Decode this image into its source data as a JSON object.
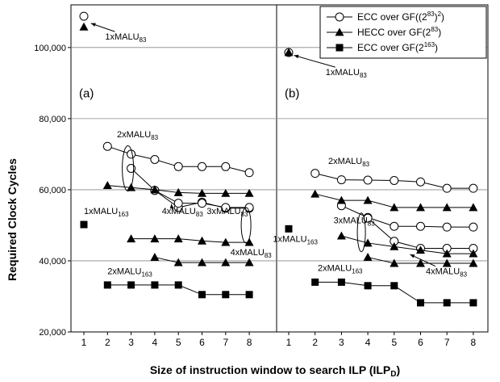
{
  "chart_data": {
    "type": "line",
    "title": "",
    "xlabel": "Size of instruction window to search ILP (ILP",
    "xlabel_sub": "D",
    "xlabel_close": ")",
    "ylabel": "Required Clock Cycles",
    "ylim": [
      20000,
      112000
    ],
    "y_ticks": [
      "20,000",
      "40,000",
      "60,000",
      "80,000",
      "100,000"
    ],
    "x_ticks": [
      "1",
      "2",
      "3",
      "4",
      "5",
      "6",
      "7",
      "8"
    ],
    "grid": true,
    "legend_position": "top-right",
    "legend": [
      {
        "label": "ECC over GF((2",
        "sup": "83",
        "label2": ")",
        "sup2": "2",
        "label3": ")",
        "marker": "circle"
      },
      {
        "label": "HECC over GF(2",
        "sup": "83",
        "label2": ")",
        "sup2": "",
        "label3": "",
        "marker": "triangle"
      },
      {
        "label": "ECC over GF(2",
        "sup": "163",
        "label2": ")",
        "sup2": "",
        "label3": "",
        "marker": "square"
      }
    ],
    "panels": [
      {
        "id": "a",
        "label": "(a)",
        "lines": [
          {
            "marker": "circle",
            "x": [
              1
            ],
            "y": [
              108800
            ]
          },
          {
            "marker": "triangle",
            "x": [
              1
            ],
            "y": [
              105800
            ]
          },
          {
            "marker": "square",
            "x": [
              1
            ],
            "y": [
              50200
            ]
          },
          {
            "marker": "circle",
            "x": [
              2,
              3,
              4,
              5,
              6,
              7,
              8
            ],
            "y": [
              72200,
              70000,
              68500,
              66500,
              66500,
              66500,
              64800
            ]
          },
          {
            "marker": "circle",
            "x": [
              3,
              4,
              5,
              6,
              7,
              8
            ],
            "y": [
              66000,
              59800,
              55000,
              56500,
              54800,
              54800
            ]
          },
          {
            "marker": "circle",
            "x": [
              4,
              5,
              6,
              7,
              8
            ],
            "y": [
              59800,
              56200,
              56200,
              55000,
              55000
            ]
          },
          {
            "marker": "triangle",
            "x": [
              2,
              3,
              4,
              5,
              6,
              7,
              8
            ],
            "y": [
              61200,
              60600,
              60000,
              59200,
              59000,
              59000,
              59000
            ]
          },
          {
            "marker": "triangle",
            "x": [
              3,
              4,
              5,
              6,
              7,
              8
            ],
            "y": [
              46200,
              46200,
              46200,
              45600,
              45200,
              45200
            ]
          },
          {
            "marker": "triangle",
            "x": [
              4,
              5,
              6,
              7,
              8
            ],
            "y": [
              41000,
              39500,
              39500,
              39500,
              39500
            ]
          },
          {
            "marker": "square",
            "x": [
              2,
              3,
              4,
              5,
              6,
              7,
              8
            ],
            "y": [
              33200,
              33200,
              33200,
              33200,
              30500,
              30500,
              30500
            ]
          }
        ],
        "annotations": [
          {
            "text": "1xMALU",
            "sub": "83",
            "tx": 1.9,
            "ty": 102200,
            "ax": 1.3,
            "ay": 106800
          },
          {
            "text": "2xMALU",
            "sub": "83",
            "tx": 2.4,
            "ty": 74800,
            "ax": null,
            "ay": null
          },
          {
            "text": "1xMALU",
            "sub": "163",
            "tx": 1.0,
            "ty": 53200,
            "ax": null,
            "ay": null
          },
          {
            "text": "4xMALU",
            "sub": "83",
            "tx": 4.3,
            "ty": 53200,
            "ax": 4.7,
            "ay": 56000
          },
          {
            "text": "3xMALU",
            "sub": "83",
            "tx": 6.2,
            "ty": 53200,
            "ax": null,
            "ay": null
          },
          {
            "text": "4xMALU",
            "sub": "83",
            "tx": 7.2,
            "ty": 41600,
            "ax": null,
            "ay": null
          },
          {
            "text": "2xMALU",
            "sub": "163",
            "tx": 2.0,
            "ty": 36200,
            "ax": null,
            "ay": null
          }
        ]
      },
      {
        "id": "b",
        "label": "(b)",
        "lines": [
          {
            "marker": "circle",
            "x": [
              1
            ],
            "y": [
              98600
            ]
          },
          {
            "marker": "triangle",
            "x": [
              1
            ],
            "y": [
              98600
            ]
          },
          {
            "marker": "square",
            "x": [
              1
            ],
            "y": [
              49000
            ]
          },
          {
            "marker": "circle",
            "x": [
              2,
              3,
              4,
              5,
              6,
              7,
              8
            ],
            "y": [
              64600,
              62800,
              62700,
              62600,
              62200,
              60400,
              60400
            ]
          },
          {
            "marker": "circle",
            "x": [
              3,
              4,
              5,
              6,
              7,
              8
            ],
            "y": [
              55500,
              52200,
              49700,
              49700,
              49500,
              49500
            ]
          },
          {
            "marker": "circle",
            "x": [
              4,
              5,
              6,
              7,
              8
            ],
            "y": [
              52000,
              45500,
              43500,
              43500,
              43500
            ]
          },
          {
            "marker": "triangle",
            "x": [
              2,
              3,
              4,
              5,
              6,
              7,
              8
            ],
            "y": [
              58800,
              57000,
              57000,
              55000,
              55000,
              55000,
              55000
            ]
          },
          {
            "marker": "triangle",
            "x": [
              3,
              4,
              5,
              6,
              7,
              8
            ],
            "y": [
              47000,
              45000,
              44000,
              43000,
              42000,
              42000
            ]
          },
          {
            "marker": "triangle",
            "x": [
              4,
              5,
              6,
              7,
              8
            ],
            "y": [
              41000,
              39300,
              39300,
              39300,
              39300
            ]
          },
          {
            "marker": "square",
            "x": [
              2,
              3,
              4,
              5,
              6,
              7,
              8
            ],
            "y": [
              34000,
              34000,
              33000,
              33000,
              28200,
              28200,
              28200
            ]
          }
        ],
        "annotations": [
          {
            "text": "1xMALU",
            "sub": "83",
            "tx": 2.4,
            "ty": 92200,
            "ax": 1.2,
            "ay": 97800
          },
          {
            "text": "2xMALU",
            "sub": "83",
            "tx": 2.5,
            "ty": 67200,
            "ax": null,
            "ay": null
          },
          {
            "text": "3xMALU",
            "sub": "83",
            "tx": 2.7,
            "ty": 50600,
            "ax": null,
            "ay": null
          },
          {
            "text": "1xMALU",
            "sub": "163",
            "tx": 0.4,
            "ty": 45300,
            "ax": null,
            "ay": null
          },
          {
            "text": "2xMALU",
            "sub": "163",
            "tx": 2.1,
            "ty": 37200,
            "ax": null,
            "ay": null
          },
          {
            "text": "4xMALU",
            "sub": "83",
            "tx": 6.2,
            "ty": 36200,
            "ax": 5.6,
            "ay": 41800
          }
        ]
      }
    ]
  }
}
